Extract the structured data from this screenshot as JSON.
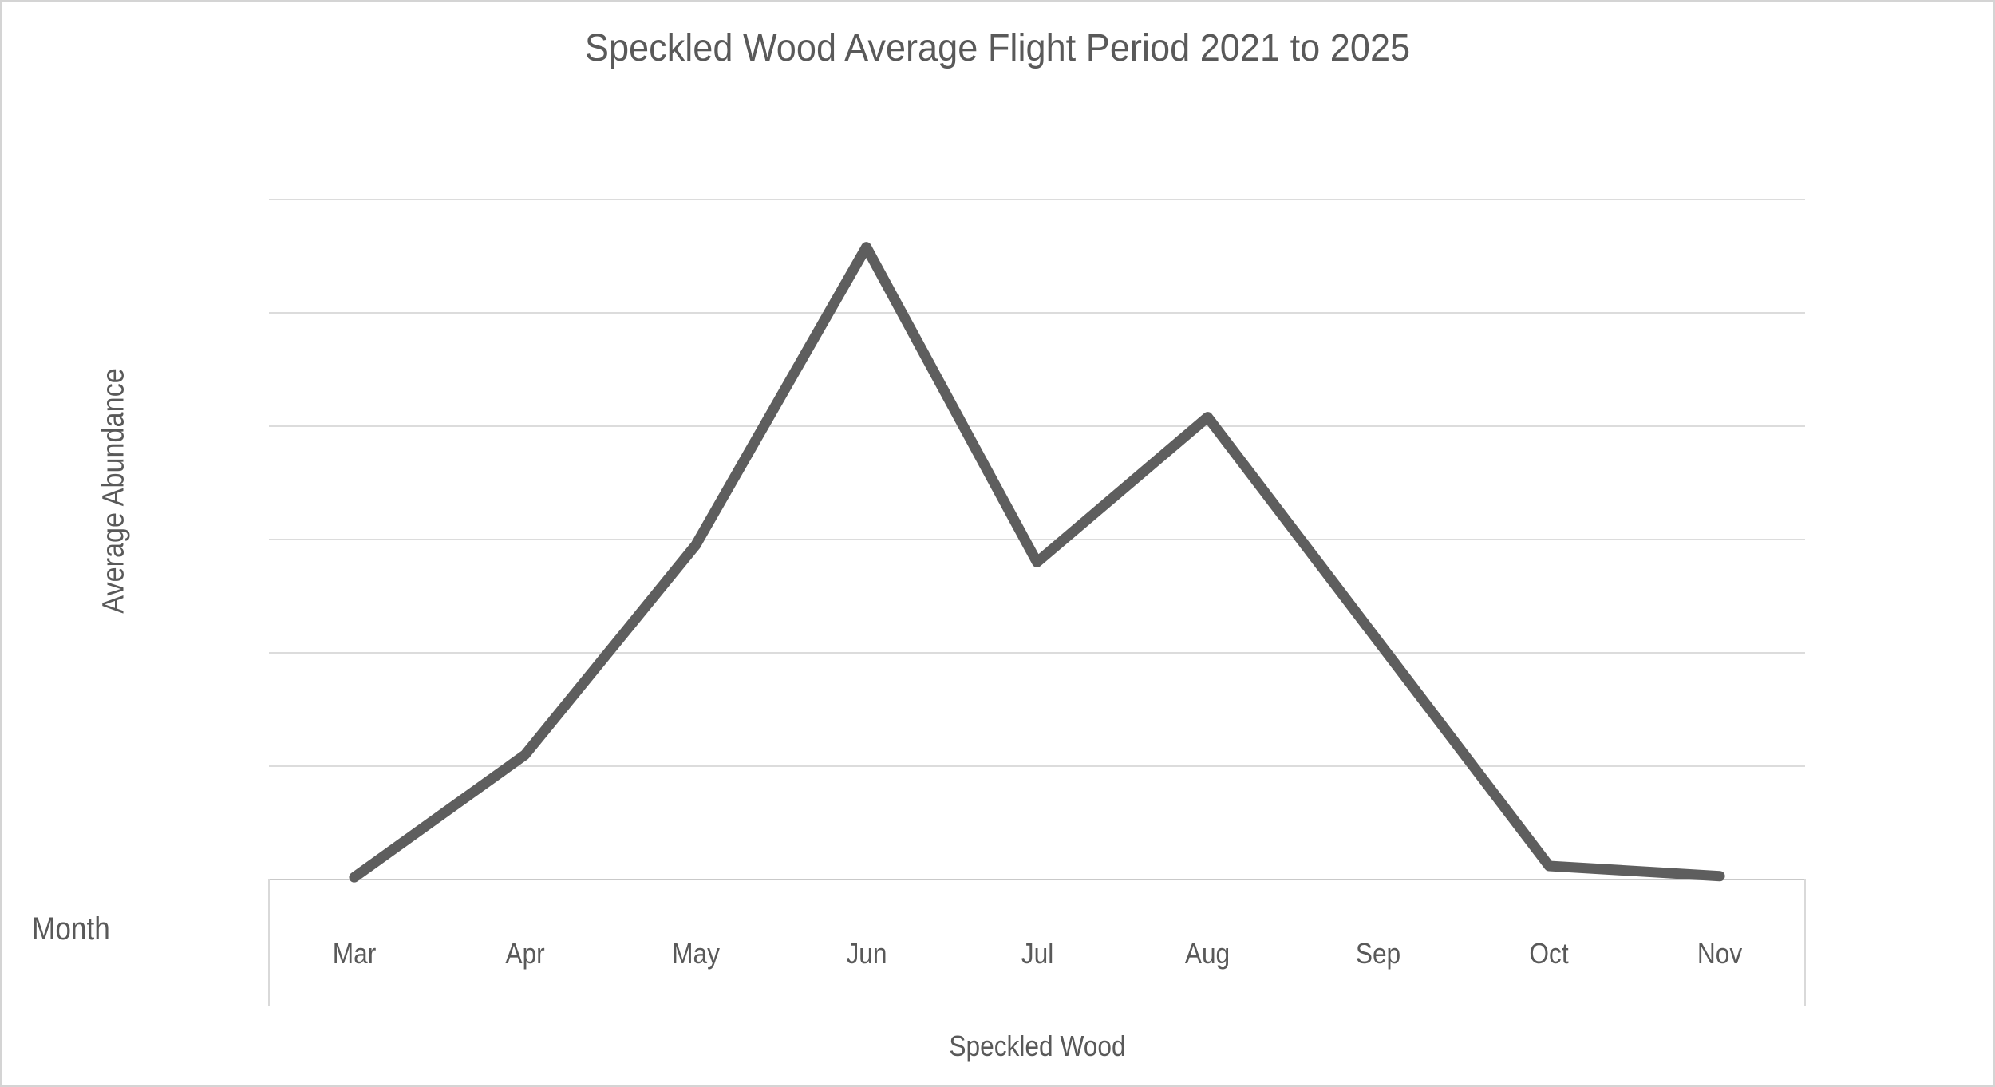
{
  "chart_data": {
    "type": "line",
    "title": "Speckled Wood Average Flight Period 2021 to 2025",
    "categories": [
      "Mar",
      "Apr",
      "May",
      "Jun",
      "Jul",
      "Aug",
      "Sep",
      "Oct",
      "Nov"
    ],
    "series": [
      {
        "name": "Speckled Wood",
        "values": [
          0.02,
          1.1,
          2.95,
          5.58,
          2.8,
          4.08,
          2.1,
          0.12,
          0.03
        ]
      }
    ],
    "xlabel": "Month",
    "ylabel": "Average Abundance",
    "ylim": [
      0,
      6
    ],
    "gridline_step": 1,
    "grid": true,
    "y_tick_labels_shown": false,
    "legend_position": "none",
    "colors": {
      "line": "#5e5e5e",
      "gridline": "#dcdcdc",
      "axis": "#c9c9c9",
      "frame": "#d9d9d9",
      "text": "#595959",
      "canvas_border": "#d4d4d4",
      "background": "#ffffff"
    }
  }
}
